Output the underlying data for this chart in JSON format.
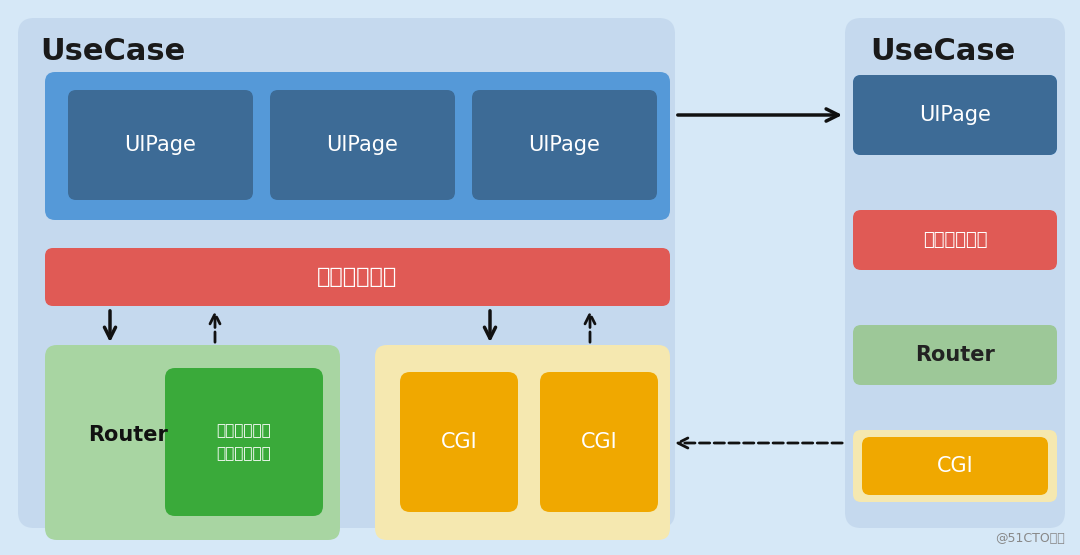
{
  "bg_color": "#d6e8f7",
  "left_panel_bg": "#c5d9ee",
  "right_panel_bg": "#c5d9ee",
  "title_left": "UseCase",
  "title_right": "UseCase",
  "ui_group_bg": "#5599d8",
  "ui_box_color": "#3d6b96",
  "ui_box_text": "UIPage",
  "biz_logic_color": "#e05a55",
  "biz_logic_text": "业务流程遑辑",
  "router_group_bg": "#a8d5a2",
  "router_text": "Router",
  "middleware_box_color": "#3aaa3a",
  "middleware_text": "统一中间环节\n错误处理机制",
  "cgi_group_bg": "#f5e8b0",
  "cgi_box_color": "#f0a800",
  "cgi_text": "CGI",
  "right_uipage_bg": "#4d94d8",
  "right_uipage_box": "#3d6b96",
  "right_biz_color": "#e05a55",
  "right_router_color": "#9dc898",
  "right_cgi_bg": "#f5e8b0",
  "right_cgi_box": "#f0a800",
  "watermark": "@51CTO博客",
  "arrow_color": "#111111"
}
